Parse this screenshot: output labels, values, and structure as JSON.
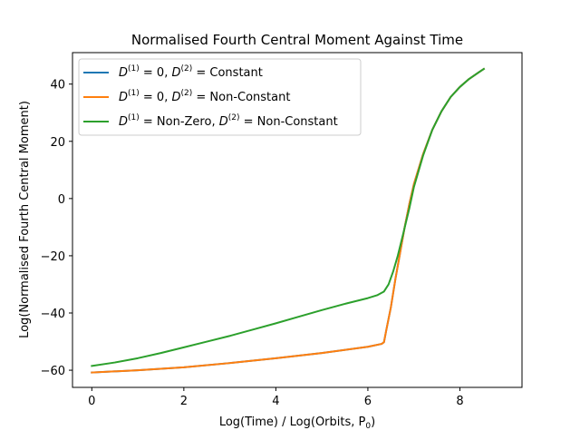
{
  "chart_data": {
    "type": "line",
    "title": "Normalised Fourth Central Moment Against Time",
    "xlabel": "Log(Time) / Log(Orbits, P",
    "xlabel_sub": "0",
    "xlabel_close": ")",
    "ylabel": "Log(Normalised Fourth Central Moment)",
    "xlim": [
      -0.42,
      9.35
    ],
    "ylim": [
      -66,
      51
    ],
    "xticks": [
      0,
      2,
      4,
      6,
      8
    ],
    "yticks": [
      -60,
      -40,
      -20,
      0,
      20,
      40
    ],
    "ytick_labels": [
      "−60",
      "−40",
      "−20",
      "0",
      "20",
      "40"
    ],
    "grid": false,
    "legend_position": "top-left",
    "series": [
      {
        "name": "D(1) = 0, D(2) = Constant",
        "color": "#1f77b4",
        "x": [
          0,
          1,
          2,
          3,
          4,
          5,
          6,
          6.3,
          6.35,
          6.4,
          6.5,
          6.6,
          6.7,
          6.8,
          6.9,
          7.0,
          7.2,
          7.4,
          7.6,
          7.8,
          8.0,
          8.2,
          8.4,
          8.52
        ],
        "y": [
          -60.8,
          -60.0,
          -59.0,
          -57.5,
          -55.8,
          -54.0,
          -51.8,
          -50.8,
          -50.2,
          -46.0,
          -38.0,
          -28.0,
          -19.0,
          -10.0,
          -2.0,
          5.0,
          15.5,
          24.0,
          30.5,
          35.5,
          39.0,
          41.8,
          44.0,
          45.3
        ]
      },
      {
        "name": "D(1) = 0, D(2) = Non-Constant",
        "color": "#ff7f0e",
        "x": [
          0,
          1,
          2,
          3,
          4,
          5,
          6,
          6.3,
          6.35,
          6.4,
          6.5,
          6.6,
          6.7,
          6.8,
          6.9,
          7.0,
          7.2,
          7.4,
          7.6,
          7.8,
          8.0,
          8.2,
          8.4,
          8.52
        ],
        "y": [
          -60.8,
          -60.0,
          -59.0,
          -57.5,
          -55.8,
          -54.0,
          -51.8,
          -50.8,
          -50.2,
          -46.0,
          -38.0,
          -28.0,
          -19.0,
          -10.0,
          -2.0,
          5.0,
          15.5,
          24.0,
          30.5,
          35.5,
          39.0,
          41.8,
          44.0,
          45.3
        ]
      },
      {
        "name": "D(1) = Non-Zero, D(2) = Non-Constant",
        "color": "#2ca02c",
        "x": [
          0,
          0.5,
          1,
          1.5,
          2,
          2.5,
          3,
          3.5,
          4,
          4.5,
          5,
          5.5,
          6,
          6.2,
          6.35,
          6.45,
          6.55,
          6.65,
          6.75,
          6.9,
          7.0,
          7.2,
          7.4,
          7.6,
          7.8,
          8.0,
          8.2,
          8.4,
          8.52
        ],
        "y": [
          -58.5,
          -57.3,
          -55.8,
          -54.0,
          -52.0,
          -50.0,
          -48.0,
          -45.8,
          -43.6,
          -41.3,
          -39.0,
          -36.8,
          -34.8,
          -33.8,
          -32.5,
          -30.0,
          -25.5,
          -20.0,
          -13.5,
          -3.5,
          4.0,
          15.0,
          24.0,
          30.5,
          35.5,
          39.0,
          41.8,
          44.0,
          45.3
        ]
      }
    ],
    "legend": [
      {
        "color": "#1f77b4",
        "d1": "D",
        "d1_sup": "(1)",
        "eq1": " = 0, ",
        "d2": "D",
        "d2_sup": "(2)",
        "eq2": " = ",
        "tail": "Constant"
      },
      {
        "color": "#ff7f0e",
        "d1": "D",
        "d1_sup": "(1)",
        "eq1": " = 0, ",
        "d2": "D",
        "d2_sup": "(2)",
        "eq2": " = ",
        "tail": "Non-Constant"
      },
      {
        "color": "#2ca02c",
        "d1": "D",
        "d1_sup": "(1)",
        "eq1": " = Non-Zero, ",
        "d2": "D",
        "d2_sup": "(2)",
        "eq2": " = ",
        "tail": "Non-Constant"
      }
    ]
  }
}
